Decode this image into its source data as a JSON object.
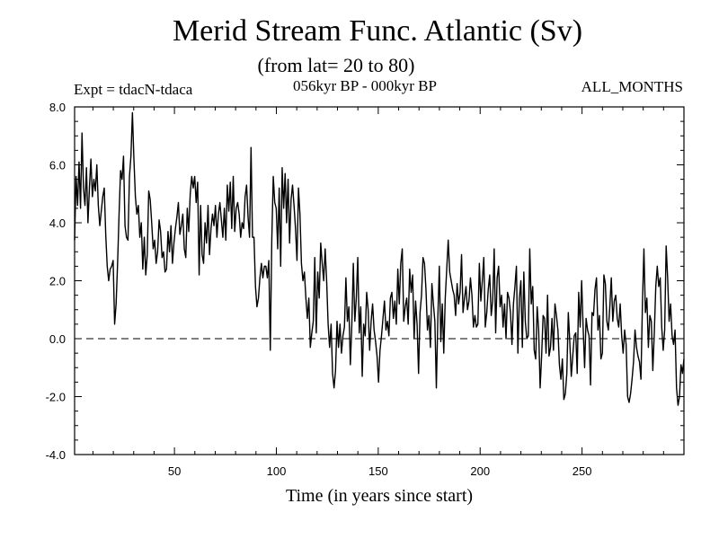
{
  "chart_data": {
    "type": "line",
    "title": "Merid Stream Func. Atlantic (Sv)",
    "subtitle": "(from lat= 20 to 80)",
    "experiment": "Expt = tdacN-tdaca",
    "period": "056kyr BP - 000kyr BP",
    "months": "ALL_MONTHS",
    "xlabel": "Time (in years since start)",
    "ylabel": "",
    "xlim": [
      1,
      300
    ],
    "ylim": [
      -4,
      8
    ],
    "x_ticks": [
      50,
      100,
      150,
      200,
      250
    ],
    "x_tick_labels": [
      "50",
      "100",
      "150",
      "200",
      "250"
    ],
    "y_ticks": [
      -4,
      -2,
      0,
      2,
      4,
      6,
      8
    ],
    "y_tick_labels": [
      "-4.0",
      "-2.0",
      "0.0",
      "2.0",
      "4.0",
      "6.0",
      "8.0"
    ],
    "zero_line": "dashed",
    "series": [
      {
        "name": "Merid Stream Func. Atlantic",
        "x_start": 1,
        "values": [
          3.4,
          5.6,
          4.6,
          6.1,
          4.5,
          7.1,
          5.2,
          4.6,
          5.9,
          4.0,
          5.2,
          6.2,
          4.9,
          5.5,
          5.1,
          6.0,
          4.6,
          3.9,
          4.4,
          4.9,
          5.2,
          3.6,
          2.5,
          2.0,
          2.4,
          2.5,
          2.7,
          0.5,
          1.2,
          2.6,
          4.3,
          5.8,
          5.5,
          6.3,
          3.9,
          3.5,
          3.4,
          5.6,
          6.3,
          7.8,
          6.2,
          4.9,
          4.3,
          4.6,
          3.5,
          4.0,
          2.4,
          3.5,
          2.2,
          2.9,
          5.1,
          4.8,
          4.0,
          3.1,
          3.4,
          2.6,
          3.0,
          4.1,
          3.7,
          2.8,
          3.0,
          2.3,
          2.4,
          3.7,
          3.0,
          3.9,
          2.6,
          3.3,
          3.8,
          4.2,
          4.7,
          3.6,
          3.9,
          4.3,
          3.1,
          2.8,
          4.5,
          3.7,
          5.0,
          5.6,
          5.2,
          5.6,
          4.7,
          5.4,
          2.2,
          4.6,
          2.9,
          2.6,
          4.0,
          3.3,
          4.6,
          2.9,
          3.8,
          4.3,
          3.9,
          4.6,
          3.5,
          4.3,
          4.7,
          4.1,
          3.5,
          4.5,
          3.4,
          5.3,
          4.4,
          5.4,
          3.8,
          5.6,
          3.7,
          4.5,
          4.7,
          4.3,
          3.5,
          4.0,
          3.8,
          4.9,
          5.3,
          4.2,
          3.5,
          6.6,
          3.5,
          3.5,
          1.8,
          1.1,
          1.4,
          2.1,
          2.6,
          2.1,
          2.5,
          2.5,
          2.1,
          2.7,
          -0.4,
          3.4,
          5.6,
          4.7,
          4.5,
          3.1,
          5.2,
          2.5,
          5.9,
          4.5,
          5.7,
          4.0,
          5.5,
          3.3,
          4.8,
          5.3,
          4.6,
          3.8,
          2.7,
          5.2,
          4.3,
          2.6,
          2.0,
          2.3,
          1.4,
          0.7,
          1.4,
          -0.3,
          0.2,
          0.6,
          2.8,
          0.2,
          2.3,
          1.4,
          3.3,
          2.6,
          2.0,
          3.1,
          2.0,
          0.5,
          -0.3,
          0.5,
          -1.2,
          -1.7,
          -1.1,
          0.6,
          -0.3,
          0.5,
          -0.5,
          0.1,
          0.4,
          2.1,
          0.6,
          1.1,
          -0.9,
          0.5,
          2.6,
          0.6,
          1.4,
          2.8,
          0.2,
          1.1,
          -1.3,
          0.5,
          0.1,
          1.6,
          1.0,
          -0.4,
          0.6,
          1.2,
          0.3,
          -0.1,
          -0.6,
          -1.5,
          -0.4,
          0.1,
          0.7,
          1.3,
          0.3,
          0.6,
          0.1,
          1.4,
          1.6,
          0.7,
          1.3,
          0.5,
          2.4,
          1.2,
          2.6,
          3.1,
          0.6,
          1.1,
          1.4,
          0.5,
          2.4,
          1.6,
          2.2,
          0.0,
          1.3,
          0.5,
          -1.2,
          0.9,
          1.5,
          2.8,
          2.6,
          1.7,
          0.3,
          0.8,
          -0.3,
          1.9,
          1.2,
          0.6,
          -1.7,
          0.7,
          2.5,
          -0.1,
          1.2,
          -0.5,
          1.4,
          2.4,
          3.4,
          2.3,
          2.0,
          1.7,
          1.5,
          0.8,
          1.9,
          1.2,
          1.6,
          2.9,
          0.9,
          1.4,
          1.8,
          1.0,
          1.3,
          2.1,
          1.5,
          0.4,
          0.8,
          0.4,
          0.5,
          2.6,
          1.3,
          2.0,
          2.8,
          0.4,
          0.9,
          1.7,
          2.2,
          0.8,
          1.3,
          3.1,
          0.2,
          2.1,
          2.5,
          1.1,
          1.5,
          0.4,
          1.2,
          0.0,
          1.6,
          1.4,
          0.9,
          -0.2,
          1.2,
          1.8,
          2.5,
          -0.5,
          1.4,
          2.0,
          -0.3,
          2.3,
          0.6,
          0.0,
          0.1,
          3.1,
          1.2,
          1.8,
          -0.4,
          -0.7,
          1.1,
          0.3,
          -1.7,
          -0.6,
          0.8,
          0.7,
          -0.5,
          1.5,
          -0.6,
          -0.3,
          0.7,
          -0.4,
          1.2,
          0.8,
          0.3,
          -0.9,
          -1.4,
          -0.7,
          -2.1,
          -1.9,
          -1.2,
          0.9,
          -0.1,
          -1.3,
          -0.6,
          0.1,
          0.2,
          -1.2,
          1.6,
          0.4,
          2.0,
          0.4,
          -1.0,
          0.7,
          0.3,
          0.1,
          -1.6,
          0.9,
          0.8,
          1.7,
          2.1,
          0.3,
          0.8,
          -0.7,
          -0.5,
          2.2,
          1.9,
          0.6,
          0.3,
          1.1,
          2.1,
          0.6,
          1.3,
          1.5,
          0.7,
          0.4,
          1.2,
          0.1,
          -0.5,
          0.3,
          -0.2,
          -2.0,
          -2.2,
          -1.9,
          -1.4,
          -0.8,
          0.3,
          -0.3,
          -0.6,
          -0.8,
          -1.4,
          1.2,
          3.1,
          0.9,
          1.4,
          -0.3,
          0.8,
          0.6,
          -1.1,
          0.2,
          1.8,
          2.5,
          1.8,
          2.1,
          0.4,
          -0.4,
          0.3,
          3.2,
          2.1,
          0.6,
          1.2,
          0.1,
          -0.2,
          0.3,
          -1.7,
          -2.3,
          -2.0,
          -0.9,
          -1.2,
          -0.7
        ]
      }
    ]
  }
}
